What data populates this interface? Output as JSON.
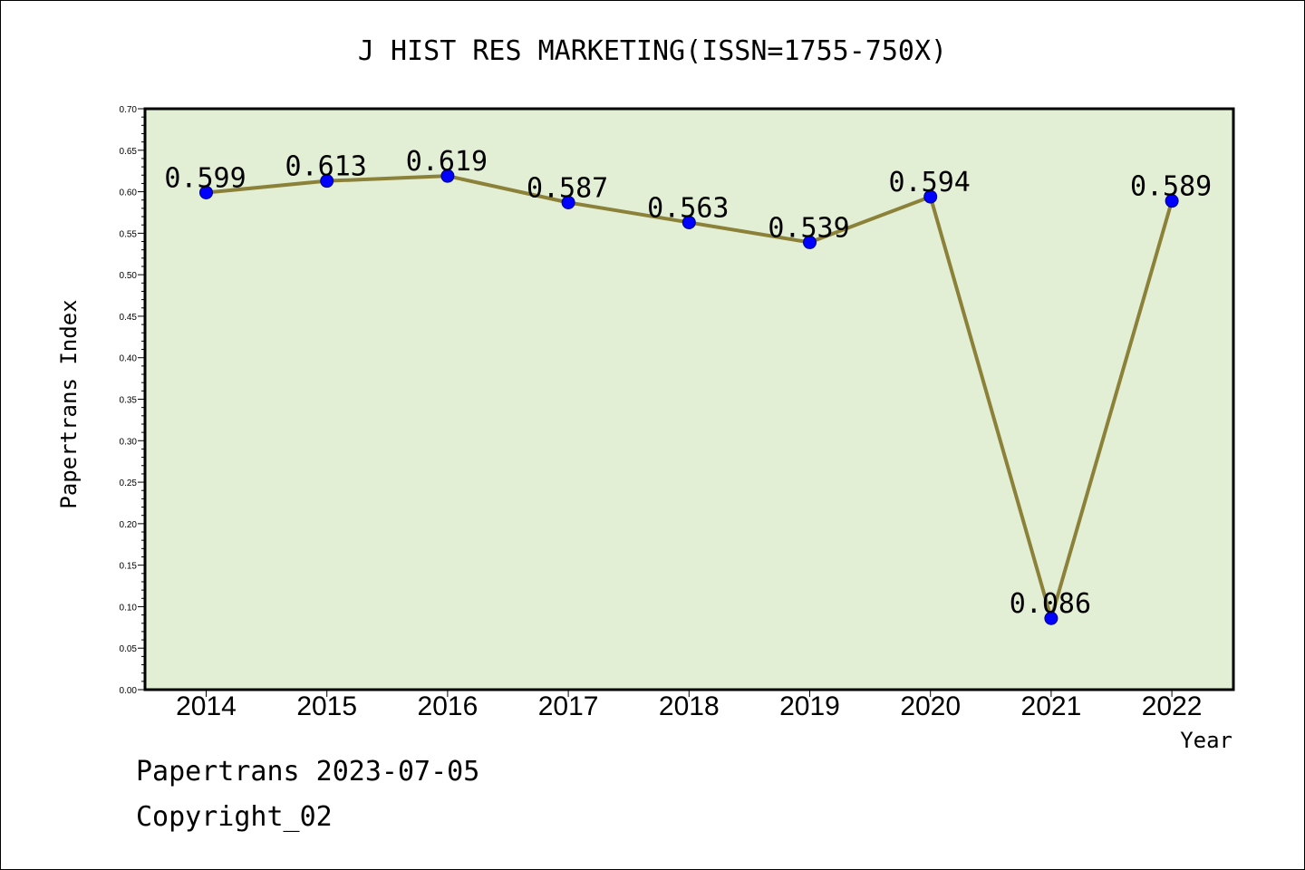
{
  "chart_data": {
    "type": "line",
    "title": "J HIST RES MARKETING(ISSN=1755-750X)",
    "xlabel": "Year",
    "ylabel": "Papertrans Index",
    "categories": [
      "2014",
      "2015",
      "2016",
      "2017",
      "2018",
      "2019",
      "2020",
      "2021",
      "2022"
    ],
    "values": [
      0.599,
      0.613,
      0.619,
      0.587,
      0.563,
      0.539,
      0.594,
      0.086,
      0.589
    ],
    "data_labels": [
      "0.599",
      "0.613",
      "0.619",
      "0.587",
      "0.563",
      "0.539",
      "0.594",
      "0.086",
      "0.589"
    ],
    "ylim": [
      0,
      0.7
    ],
    "yticks": [
      "0.00",
      "0.05",
      "0.10",
      "0.15",
      "0.20",
      "0.25",
      "0.30",
      "0.35",
      "0.40",
      "0.45",
      "0.50",
      "0.55",
      "0.60",
      "0.65",
      "0.70"
    ],
    "grid": false,
    "colors": {
      "plot_background": "#e2efd5",
      "line": "#8b8139",
      "marker": "#0000ff"
    }
  },
  "footer": {
    "source": "Papertrans 2023-07-05",
    "copyright": "Copyright_02"
  }
}
